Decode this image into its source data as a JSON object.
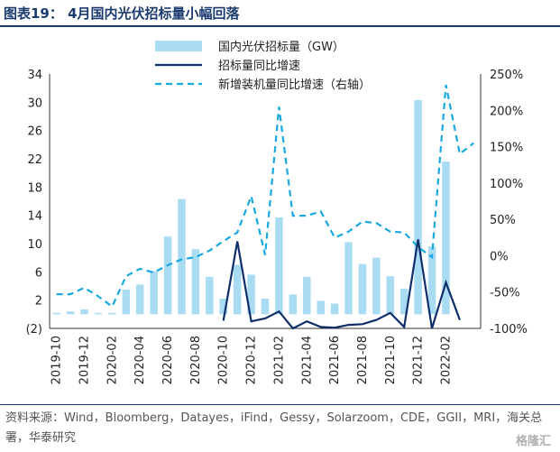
{
  "page": {
    "title": "图表19： 4月国内光伏招标量小幅回落",
    "source": "资料来源：Wind，Bloomberg，Datayes，iFind，Gessy，Solarzoom，CDE，GGII，MRI，海关总署，华泰研究",
    "watermark": "格隆汇"
  },
  "colors": {
    "bar": "#a9dcf3",
    "yoy": "#0f2f6b",
    "install": "#19a8e0"
  },
  "chart_data": {
    "type": "bar",
    "categories": [
      "2019-10",
      "2019-11",
      "2019-12",
      "2020-01",
      "2020-02",
      "2020-03",
      "2020-04",
      "2020-05",
      "2020-06",
      "2020-07",
      "2020-08",
      "2020-09",
      "2020-10",
      "2020-11",
      "2020-12",
      "2021-01",
      "2021-02",
      "2021-03",
      "2021-04",
      "2021-05",
      "2021-06",
      "2021-07",
      "2021-08",
      "2021-09",
      "2021-10",
      "2021-11",
      "2021-12",
      "2022-01",
      "2022-02",
      "2022-03",
      "2022-04"
    ],
    "x_tick_labels": [
      "2019-10",
      "2019-12",
      "2020-02",
      "2020-04",
      "2020-06",
      "2020-08",
      "2020-10",
      "2020-12",
      "2021-02",
      "2021-04",
      "2021-06",
      "2021-08",
      "2021-10",
      "2021-12",
      "2022-02"
    ],
    "ylim_left": [
      -2,
      34
    ],
    "yticks_left": [
      "34",
      "30",
      "26",
      "22",
      "18",
      "14",
      "10",
      "6",
      "2",
      "(2)"
    ],
    "ylim_right": [
      -100,
      250
    ],
    "yticks_right": [
      "250%",
      "200%",
      "150%",
      "100%",
      "50%",
      "0%",
      "-50%",
      "-100%"
    ],
    "legend": [
      "国内光伏招标量（GW）",
      "招标量同比增速",
      "新增装机量同比增速（右轴）"
    ],
    "series": [
      {
        "name": "国内光伏招标量（GW）",
        "type": "bar",
        "axis": "left",
        "values": [
          0.2,
          0.4,
          0.7,
          0.2,
          0.2,
          3.5,
          4.2,
          6.1,
          11.0,
          16.3,
          9.2,
          5.3,
          2.2,
          7.0,
          5.6,
          2.2,
          13.7,
          2.8,
          5.3,
          1.9,
          1.5,
          10.2,
          7.1,
          8.0,
          5.4,
          3.6,
          30.3,
          9.6,
          21.6,
          null,
          null
        ]
      },
      {
        "name": "招标量同比增速",
        "type": "line",
        "axis": "left",
        "values": [
          null,
          null,
          null,
          null,
          null,
          null,
          null,
          null,
          null,
          null,
          null,
          null,
          -0.9,
          10.3,
          -1.0,
          -0.6,
          0.4,
          -2.0,
          -1.0,
          -1.8,
          -1.9,
          -1.5,
          -1.4,
          -0.8,
          0.2,
          -1.8,
          10.6,
          -2.0,
          4.5,
          -0.8,
          null
        ]
      },
      {
        "name": "新增装机量同比增速（右轴）",
        "type": "line",
        "axis": "right",
        "values": [
          -53,
          -53,
          -44,
          -56,
          -70,
          -28,
          -18,
          -23,
          -13,
          -5,
          -2,
          7,
          20,
          32,
          82,
          1,
          205,
          55,
          55,
          61,
          25,
          33,
          47,
          45,
          33,
          32,
          12,
          -2,
          235,
          140,
          155
        ]
      }
    ]
  }
}
